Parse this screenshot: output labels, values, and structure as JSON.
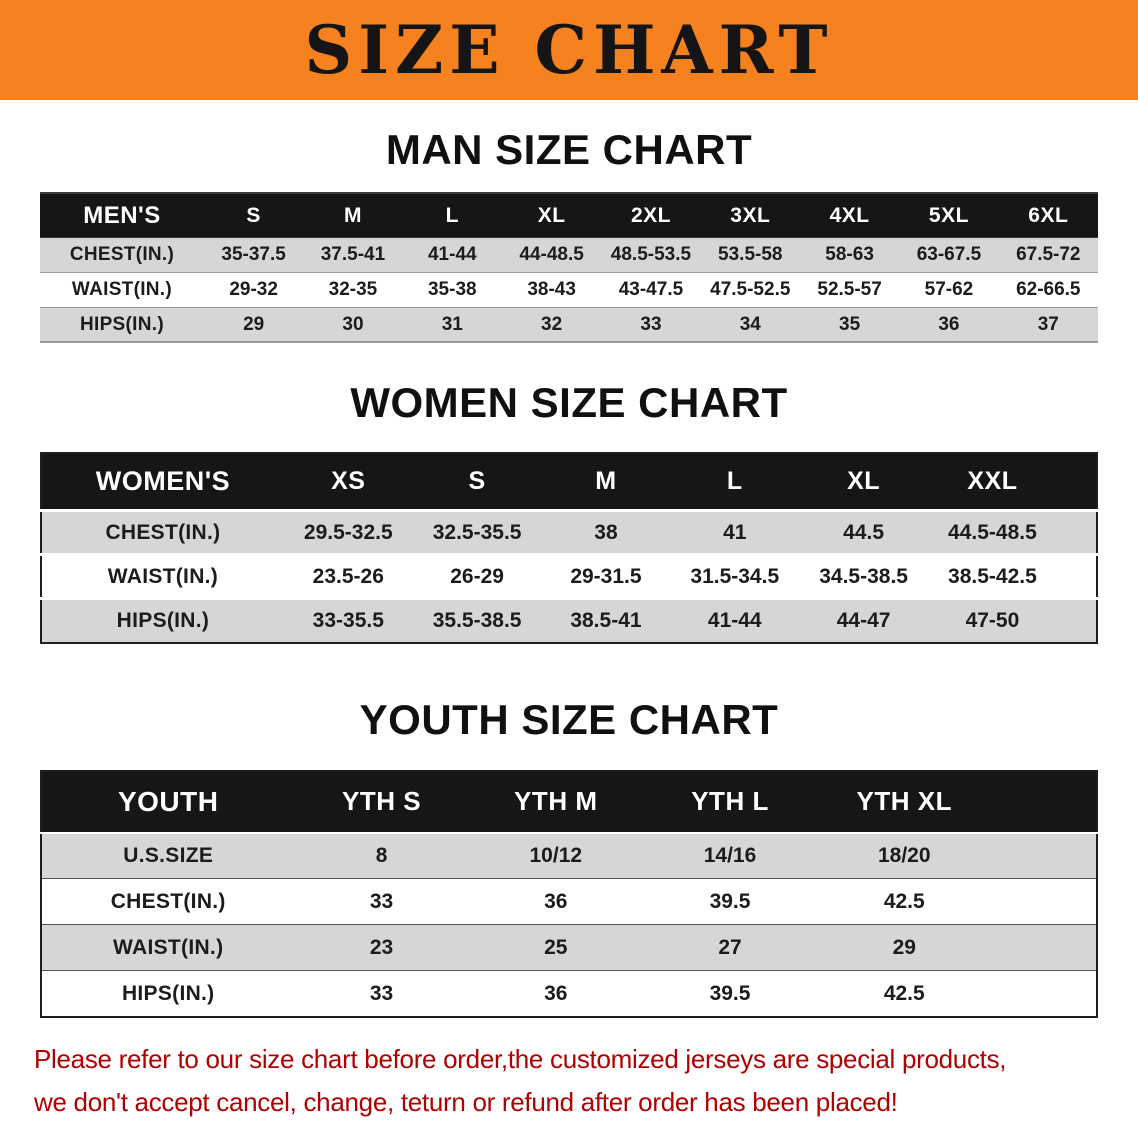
{
  "banner": {
    "title": "SIZE CHART"
  },
  "colors": {
    "banner_bg": "#f5821f",
    "table_header_bg": "#161616",
    "row_stripe": "#d6d6d6",
    "note_text": "#b00000"
  },
  "sections": [
    {
      "id": "men",
      "heading": "MAN SIZE CHART",
      "header_label": "MEN'S",
      "columns": [
        "S",
        "M",
        "L",
        "XL",
        "2XL",
        "3XL",
        "4XL",
        "5XL",
        "6XL"
      ],
      "rows": [
        {
          "label": "CHEST(IN.)",
          "values": [
            "35-37.5",
            "37.5-41",
            "41-44",
            "44-48.5",
            "48.5-53.5",
            "53.5-58",
            "58-63",
            "63-67.5",
            "67.5-72"
          ]
        },
        {
          "label": "WAIST(IN.)",
          "values": [
            "29-32",
            "32-35",
            "35-38",
            "38-43",
            "43-47.5",
            "47.5-52.5",
            "52.5-57",
            "57-62",
            "62-66.5"
          ]
        },
        {
          "label": "HIPS(IN.)",
          "values": [
            "29",
            "30",
            "31",
            "32",
            "33",
            "34",
            "35",
            "36",
            "37"
          ]
        }
      ]
    },
    {
      "id": "women",
      "heading": "WOMEN SIZE CHART",
      "header_label": "WOMEN'S",
      "columns": [
        "XS",
        "S",
        "M",
        "L",
        "XL",
        "XXL"
      ],
      "rows": [
        {
          "label": "CHEST(IN.)",
          "values": [
            "29.5-32.5",
            "32.5-35.5",
            "38",
            "41",
            "44.5",
            "44.5-48.5"
          ]
        },
        {
          "label": "WAIST(IN.)",
          "values": [
            "23.5-26",
            "26-29",
            "29-31.5",
            "31.5-34.5",
            "34.5-38.5",
            "38.5-42.5"
          ]
        },
        {
          "label": "HIPS(IN.)",
          "values": [
            "33-35.5",
            "35.5-38.5",
            "38.5-41",
            "41-44",
            "44-47",
            "47-50"
          ]
        }
      ]
    },
    {
      "id": "youth",
      "heading": "YOUTH SIZE CHART",
      "header_label": "YOUTH",
      "columns": [
        "YTH S",
        "YTH M",
        "YTH L",
        "YTH XL"
      ],
      "rows": [
        {
          "label": "U.S.SIZE",
          "values": [
            "8",
            "10/12",
            "14/16",
            "18/20"
          ]
        },
        {
          "label": "CHEST(IN.)",
          "values": [
            "33",
            "36",
            "39.5",
            "42.5"
          ]
        },
        {
          "label": "WAIST(IN.)",
          "values": [
            "23",
            "25",
            "27",
            "29"
          ]
        },
        {
          "label": "HIPS(IN.)",
          "values": [
            "33",
            "36",
            "39.5",
            "42.5"
          ]
        }
      ]
    }
  ],
  "footer_note": {
    "line1": "Please refer to our size chart before order,the customized jerseys are special products,",
    "line2": "we don't accept cancel, change, teturn or refund after order has been placed!"
  }
}
